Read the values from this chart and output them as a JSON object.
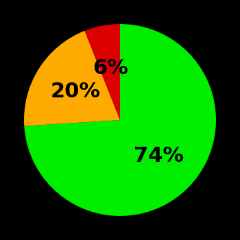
{
  "slices": [
    74,
    20,
    6
  ],
  "colors": [
    "#00ee00",
    "#ffaa00",
    "#dd0000"
  ],
  "labels": [
    "74%",
    "20%",
    "6%"
  ],
  "background_color": "#000000",
  "startangle": 90,
  "figsize": [
    3.5,
    3.5
  ],
  "dpi": 100,
  "label_fontsize": 22,
  "label_fontweight": "bold",
  "label_radii": [
    0.55,
    0.55,
    0.55
  ]
}
